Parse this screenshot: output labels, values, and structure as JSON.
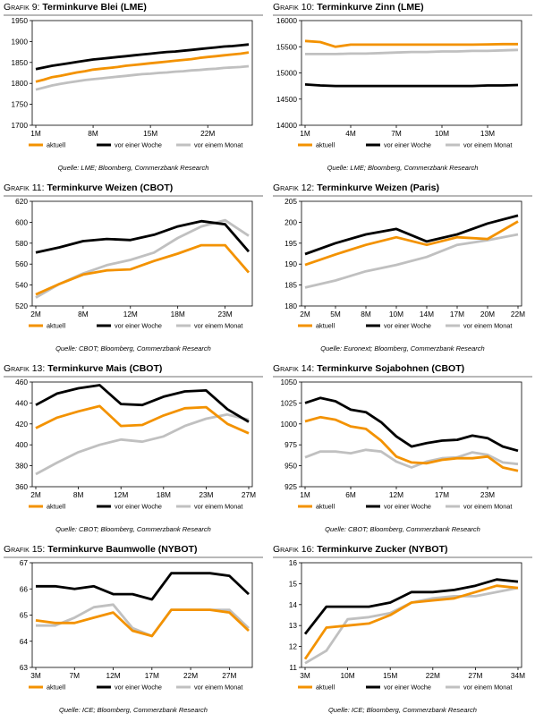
{
  "grafik_label": "Grafik",
  "chart_data": [
    {
      "type": "line",
      "number": "9:",
      "title": "Terminkurve Blei (LME)",
      "x_ticks": [
        "1M",
        "8M",
        "15M",
        "22M"
      ],
      "x_count": 27,
      "x_tick_positions": [
        1,
        8,
        15,
        22
      ],
      "ylim": [
        1700,
        1950
      ],
      "y_ticks": [
        1700,
        1750,
        1800,
        1850,
        1900,
        1950
      ],
      "series": [
        {
          "name": "aktuell",
          "color": "#f39200",
          "values": [
            1804,
            1809,
            1815,
            1818,
            1822,
            1826,
            1829,
            1833,
            1835,
            1837,
            1839,
            1842,
            1844,
            1846,
            1848,
            1850,
            1852,
            1854,
            1856,
            1858,
            1861,
            1863,
            1865,
            1867,
            1869,
            1871,
            1874
          ]
        },
        {
          "name": "vor einer Woche",
          "color": "#000000",
          "values": [
            1834,
            1838,
            1842,
            1845,
            1848,
            1851,
            1854,
            1857,
            1859,
            1861,
            1863,
            1865,
            1867,
            1869,
            1871,
            1873,
            1875,
            1876,
            1878,
            1880,
            1882,
            1884,
            1886,
            1888,
            1889,
            1891,
            1893
          ]
        },
        {
          "name": "vor einem Monat",
          "color": "#c0c0c0",
          "values": [
            1785,
            1790,
            1795,
            1799,
            1802,
            1805,
            1808,
            1810,
            1812,
            1814,
            1816,
            1818,
            1820,
            1822,
            1823,
            1825,
            1826,
            1828,
            1829,
            1831,
            1832,
            1834,
            1835,
            1837,
            1838,
            1839,
            1841
          ]
        }
      ],
      "source": "Quelle: LME; Bloomberg, Commerzbank Research"
    },
    {
      "type": "line",
      "number": "10:",
      "title": "Terminkurve Zinn (LME)",
      "x_ticks": [
        "1M",
        "4M",
        "7M",
        "10M",
        "13M"
      ],
      "x_count": 15,
      "x_tick_positions": [
        1,
        4,
        7,
        10,
        13
      ],
      "ylim": [
        14000,
        16000
      ],
      "y_ticks": [
        14000,
        14500,
        15000,
        15500,
        16000
      ],
      "series": [
        {
          "name": "aktuell",
          "color": "#f39200",
          "values": [
            15610,
            15590,
            15500,
            15540,
            15540,
            15540,
            15540,
            15540,
            15540,
            15540,
            15540,
            15540,
            15545,
            15550,
            15550
          ]
        },
        {
          "name": "vor einer Woche",
          "color": "#000000",
          "values": [
            14780,
            14760,
            14750,
            14750,
            14750,
            14750,
            14750,
            14750,
            14750,
            14750,
            14750,
            14750,
            14760,
            14760,
            14770
          ]
        },
        {
          "name": "vor einem Monat",
          "color": "#c0c0c0",
          "values": [
            15360,
            15360,
            15360,
            15370,
            15370,
            15380,
            15390,
            15400,
            15400,
            15410,
            15410,
            15420,
            15420,
            15430,
            15440
          ]
        }
      ],
      "source": "Quelle: LME; Bloomberg, Commerzbank Research"
    },
    {
      "type": "line",
      "number": "11:",
      "title": "Terminkurve Weizen (CBOT)",
      "x_ticks": [
        "2M",
        "8M",
        "12M",
        "18M",
        "23M"
      ],
      "x_count": 10,
      "x_tick_positions": [
        1,
        3,
        5,
        7,
        9
      ],
      "ylim": [
        520,
        620
      ],
      "y_ticks": [
        520,
        540,
        560,
        580,
        600,
        620
      ],
      "series": [
        {
          "name": "aktuell",
          "color": "#f39200",
          "values": [
            531,
            541,
            550,
            554,
            555,
            563,
            570,
            578,
            578,
            552
          ]
        },
        {
          "name": "vor einer Woche",
          "color": "#000000",
          "values": [
            571,
            576,
            582,
            584,
            583,
            588,
            596,
            601,
            598,
            572
          ]
        },
        {
          "name": "vor einem Monat",
          "color": "#c0c0c0",
          "values": [
            528,
            541,
            551,
            559,
            564,
            571,
            585,
            596,
            602,
            587
          ]
        }
      ],
      "source": "Quelle: CBOT; Bloomberg, Commerzbank Research"
    },
    {
      "type": "line",
      "number": "12:",
      "title": "Terminkurve Weizen (Paris)",
      "x_ticks": [
        "2M",
        "5M",
        "8M",
        "10M",
        "14M",
        "17M",
        "20M",
        "22M"
      ],
      "x_count": 8,
      "x_tick_positions": [
        1,
        2,
        3,
        4,
        5,
        6,
        7,
        8
      ],
      "ylim": [
        180,
        205
      ],
      "y_ticks": [
        180,
        185,
        190,
        195,
        200,
        205
      ],
      "series": [
        {
          "name": "aktuell",
          "color": "#f39200",
          "values": [
            189.8,
            192.3,
            194.6,
            196.4,
            194.6,
            196.4,
            196.0,
            200.2
          ]
        },
        {
          "name": "vor einer Woche",
          "color": "#000000",
          "values": [
            192.4,
            195.0,
            197.1,
            198.4,
            195.4,
            197.1,
            199.7,
            201.6
          ]
        },
        {
          "name": "vor einem Monat",
          "color": "#c0c0c0",
          "values": [
            184.4,
            186.1,
            188.3,
            189.8,
            191.7,
            194.6,
            195.7,
            197.1
          ]
        }
      ],
      "source": "Quelle: Euronext; Bloomberg, Commerzbank Research"
    },
    {
      "type": "line",
      "number": "13:",
      "title": "Terminkurve Mais (CBOT)",
      "x_ticks": [
        "2M",
        "8M",
        "12M",
        "18M",
        "23M",
        "27M"
      ],
      "x_count": 11,
      "x_tick_positions": [
        1,
        3,
        5,
        7,
        9,
        11
      ],
      "ylim": [
        360,
        460
      ],
      "y_ticks": [
        360,
        380,
        400,
        420,
        440,
        460
      ],
      "series": [
        {
          "name": "aktuell",
          "color": "#f39200",
          "values": [
            416,
            426,
            432,
            437,
            418,
            419,
            428,
            435,
            436,
            420,
            411
          ]
        },
        {
          "name": "vor einer Woche",
          "color": "#000000",
          "values": [
            438,
            449,
            454,
            457,
            439,
            438,
            446,
            451,
            452,
            434,
            422
          ]
        },
        {
          "name": "vor einem Monat",
          "color": "#c0c0c0",
          "values": [
            372,
            383,
            393,
            400,
            405,
            403,
            408,
            418,
            425,
            429,
            424
          ]
        }
      ],
      "source": "Quelle: CBOT; Bloomberg, Commerzbank Research"
    },
    {
      "type": "line",
      "number": "14:",
      "title": "Terminkurve Sojabohnen (CBOT)",
      "x_ticks": [
        "1M",
        "6M",
        "12M",
        "17M",
        "23M"
      ],
      "x_count": 15,
      "x_tick_positions": [
        1,
        4,
        7,
        10,
        13
      ],
      "ylim": [
        925,
        1050
      ],
      "y_ticks": [
        925,
        950,
        975,
        1000,
        1025,
        1050
      ],
      "series": [
        {
          "name": "aktuell",
          "color": "#f39200",
          "values": [
            1003,
            1008,
            1005,
            997,
            994,
            980,
            961,
            954,
            953,
            957,
            959,
            959,
            961,
            948,
            944
          ]
        },
        {
          "name": "vor einer Woche",
          "color": "#000000",
          "values": [
            1025,
            1031,
            1027,
            1017,
            1014,
            1002,
            985,
            973,
            977,
            980,
            981,
            986,
            983,
            973,
            968
          ]
        },
        {
          "name": "vor einem Monat",
          "color": "#c0c0c0",
          "values": [
            960,
            967,
            967,
            965,
            969,
            967,
            955,
            948,
            955,
            959,
            960,
            966,
            963,
            954,
            952
          ]
        }
      ],
      "source": "Quelle: CBOT; Bloomberg, Commerzbank Research"
    },
    {
      "type": "line",
      "number": "15:",
      "title": "Terminkurve Baumwolle (NYBOT)",
      "x_ticks": [
        "3M",
        "7M",
        "12M",
        "17M",
        "22M",
        "27M"
      ],
      "x_count": 12,
      "x_tick_positions": [
        1,
        3,
        5,
        7,
        9,
        11
      ],
      "ylim": [
        63,
        67
      ],
      "y_ticks": [
        63,
        64,
        65,
        66,
        67
      ],
      "series": [
        {
          "name": "aktuell",
          "color": "#f39200",
          "values": [
            64.8,
            64.7,
            64.7,
            64.9,
            65.1,
            64.4,
            64.2,
            65.2,
            65.2,
            65.2,
            65.1,
            64.4
          ]
        },
        {
          "name": "vor einer Woche",
          "color": "#000000",
          "values": [
            66.1,
            66.1,
            66.0,
            66.1,
            65.8,
            65.8,
            65.6,
            66.6,
            66.6,
            66.6,
            66.5,
            65.8
          ]
        },
        {
          "name": "vor einem Monat",
          "color": "#c0c0c0",
          "values": [
            64.6,
            64.6,
            64.9,
            65.3,
            65.4,
            64.5,
            64.2,
            65.2,
            65.2,
            65.2,
            65.2,
            64.5
          ]
        }
      ],
      "source": "Quelle: ICE; Bloomberg, Commerzbank Research"
    },
    {
      "type": "line",
      "number": "16:",
      "title": "Terminkurve Zucker (NYBOT)",
      "x_ticks": [
        "3M",
        "10M",
        "15M",
        "22M",
        "27M",
        "34M"
      ],
      "x_count": 11,
      "x_tick_positions": [
        1,
        3,
        5,
        7,
        9,
        11
      ],
      "ylim": [
        11.0,
        16.0
      ],
      "y_ticks": [
        11.0,
        12.0,
        13.0,
        14.0,
        15.0,
        16.0
      ],
      "series": [
        {
          "name": "aktuell",
          "color": "#f39200",
          "values": [
            11.4,
            12.9,
            13.0,
            13.1,
            13.5,
            14.1,
            14.2,
            14.3,
            14.6,
            14.9,
            14.8
          ]
        },
        {
          "name": "vor einer Woche",
          "color": "#000000",
          "values": [
            12.6,
            13.9,
            13.9,
            13.9,
            14.1,
            14.6,
            14.6,
            14.7,
            14.9,
            15.2,
            15.1
          ]
        },
        {
          "name": "vor einem Monat",
          "color": "#c0c0c0",
          "values": [
            11.2,
            11.8,
            13.3,
            13.4,
            13.6,
            14.1,
            14.3,
            14.4,
            14.4,
            14.6,
            14.8
          ]
        }
      ],
      "source": "Quelle: ICE; Bloomberg, Commerzbank Research"
    }
  ]
}
